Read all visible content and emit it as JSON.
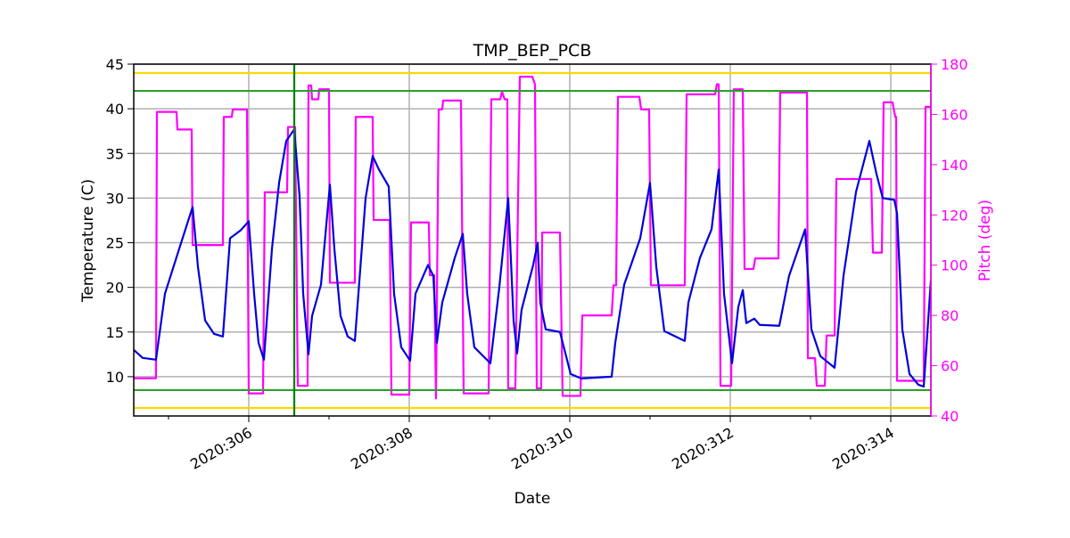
{
  "chart_data": {
    "type": "line",
    "title": "TMP_BEP_PCB",
    "xlabel": "Date",
    "ylabel": "Temperature (C)",
    "y2label": "Pitch (deg)",
    "xlim": [
      304.567,
      314.5
    ],
    "xticks": [
      {
        "value": 306,
        "label": "2020:306"
      },
      {
        "value": 308,
        "label": "2020:308"
      },
      {
        "value": 310,
        "label": "2020:310"
      },
      {
        "value": 312,
        "label": "2020:312"
      },
      {
        "value": 314,
        "label": "2020:314"
      }
    ],
    "xminorticks": [
      305,
      307,
      309,
      311,
      313
    ],
    "ylim": [
      5.6,
      45
    ],
    "yticks": [
      10,
      15,
      20,
      25,
      30,
      35,
      40,
      45
    ],
    "y2lim": [
      40,
      180
    ],
    "y2ticks": [
      40,
      60,
      80,
      100,
      120,
      140,
      160,
      180
    ],
    "y2color": "#ff00ff",
    "grid": true,
    "hlines": [
      {
        "value": 44,
        "color": "#ffd700"
      },
      {
        "value": 6.5,
        "color": "#ffd700"
      },
      {
        "value": 42,
        "color": "#2ca02c"
      },
      {
        "value": 8.5,
        "color": "#2ca02c"
      }
    ],
    "vlines": [
      {
        "value": 306.567,
        "color": "#008000"
      }
    ],
    "series": [
      {
        "color": "#ff00ff",
        "axis": "y2",
        "x": [
          304.567,
          304.844,
          304.856,
          305.1,
          305.111,
          305.289,
          305.3,
          305.678,
          305.689,
          305.789,
          305.8,
          305.978,
          306.0,
          306.178,
          306.2,
          306.478,
          306.489,
          306.578,
          306.611,
          306.733,
          306.744,
          306.778,
          306.789,
          306.867,
          306.878,
          307.0,
          307.011,
          307.322,
          307.333,
          307.544,
          307.556,
          307.756,
          307.778,
          308.0,
          308.022,
          308.244,
          308.256,
          308.311,
          308.333,
          308.367,
          308.411,
          308.422,
          308.644,
          308.678,
          308.989,
          309.022,
          309.133,
          309.156,
          309.189,
          309.222,
          309.233,
          309.322,
          309.378,
          309.533,
          309.567,
          309.589,
          309.644,
          309.656,
          309.878,
          309.911,
          310.133,
          310.156,
          310.522,
          310.544,
          310.578,
          310.6,
          310.867,
          310.889,
          310.989,
          311.011,
          311.433,
          311.456,
          311.811,
          311.833,
          311.856,
          311.878,
          312.011,
          312.044,
          312.156,
          312.178,
          312.289,
          312.311,
          312.6,
          312.622,
          312.956,
          312.967,
          313.056,
          313.078,
          313.178,
          313.2,
          313.3,
          313.322,
          313.756,
          313.778,
          313.889,
          313.911,
          314.022,
          314.056,
          314.067,
          314.078,
          314.411,
          314.433,
          314.5
        ],
        "values": [
          55,
          55,
          161,
          161,
          154,
          154,
          108,
          108,
          159,
          159,
          162,
          162,
          49,
          49,
          129,
          129,
          155,
          155,
          52,
          52,
          171.5,
          171.5,
          166,
          166,
          170,
          170,
          93,
          93,
          159,
          159,
          118,
          118,
          48.5,
          48.5,
          117,
          117,
          96,
          96,
          47,
          162,
          162,
          165.5,
          165.5,
          49,
          49,
          166,
          166,
          169,
          166,
          166,
          51,
          51,
          175,
          175,
          172,
          51,
          51,
          113,
          113,
          48,
          48,
          80,
          80,
          92,
          92,
          167,
          167,
          162,
          162,
          92,
          92,
          168,
          168,
          172,
          172,
          52,
          52,
          170,
          170,
          98.5,
          98.5,
          102.7,
          102.7,
          168.7,
          168.7,
          63,
          63,
          52,
          52,
          72,
          72,
          134.3,
          134.3,
          105,
          105,
          164.8,
          164.8,
          159,
          159,
          54,
          54,
          163,
          163
        ]
      },
      {
        "color": "#0000dd",
        "axis": "y",
        "x": [
          304.567,
          304.678,
          304.844,
          304.956,
          305.122,
          305.3,
          305.367,
          305.456,
          305.567,
          305.678,
          305.767,
          305.9,
          306.0,
          306.067,
          306.122,
          306.189,
          306.289,
          306.378,
          306.467,
          306.567,
          306.633,
          306.678,
          306.744,
          306.789,
          306.9,
          307.011,
          307.067,
          307.144,
          307.233,
          307.322,
          307.456,
          307.544,
          307.622,
          307.744,
          307.811,
          307.9,
          308.011,
          308.078,
          308.233,
          308.3,
          308.344,
          308.411,
          308.567,
          308.667,
          308.722,
          308.811,
          309.011,
          309.122,
          309.233,
          309.3,
          309.344,
          309.4,
          309.544,
          309.6,
          309.633,
          309.7,
          309.878,
          310.011,
          310.144,
          310.522,
          310.567,
          310.678,
          310.878,
          311.0,
          311.078,
          311.178,
          311.433,
          311.478,
          311.622,
          311.767,
          311.856,
          311.922,
          312.022,
          312.1,
          312.156,
          312.2,
          312.3,
          312.367,
          312.611,
          312.733,
          312.933,
          313.011,
          313.122,
          313.3,
          313.411,
          313.567,
          313.733,
          313.822,
          313.9,
          314.044,
          314.078,
          314.144,
          314.233,
          314.344,
          314.411,
          314.5
        ],
        "values": [
          13.0,
          12.1,
          11.9,
          19.3,
          24.0,
          29.0,
          22.3,
          16.3,
          14.8,
          14.5,
          25.5,
          26.4,
          27.4,
          19.3,
          13.8,
          11.9,
          24.3,
          31.7,
          36.4,
          37.7,
          30.2,
          19.3,
          12.5,
          16.8,
          20.3,
          31.5,
          24.3,
          16.8,
          14.5,
          14.0,
          30.0,
          34.7,
          33.2,
          31.3,
          19.3,
          13.3,
          11.8,
          19.3,
          22.5,
          21.3,
          13.8,
          18.3,
          23.3,
          26.0,
          19.3,
          13.3,
          11.5,
          20.0,
          30.0,
          16.3,
          12.6,
          17.5,
          22.5,
          25.0,
          18.3,
          15.3,
          15.0,
          10.3,
          9.8,
          10.0,
          13.8,
          20.3,
          25.5,
          31.7,
          22.3,
          15.1,
          14.0,
          18.3,
          23.3,
          26.5,
          33.2,
          19.3,
          11.5,
          17.8,
          19.7,
          16.0,
          16.5,
          15.8,
          15.7,
          21.3,
          26.5,
          15.3,
          12.3,
          11.0,
          21.3,
          30.7,
          36.4,
          32.7,
          30.0,
          29.8,
          28.3,
          15.3,
          10.3,
          9.1,
          8.9,
          20.8
        ]
      }
    ]
  }
}
